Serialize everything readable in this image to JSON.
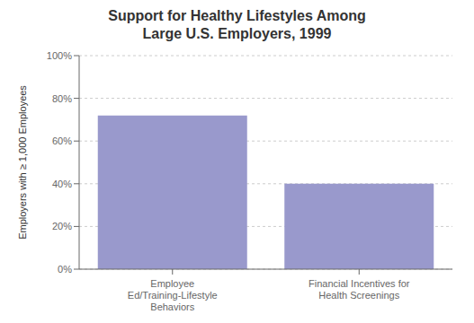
{
  "chart_data": {
    "type": "bar",
    "title": "Support for Healthy Lifestyles Among\nLarge U.S. Employers, 1999",
    "categories": [
      "Employee Ed/Training-Lifestyle Behaviors",
      "Financial Incentives for Health Screenings"
    ],
    "values": [
      0.72,
      0.4
    ],
    "color": "#9999cc",
    "ylabel": "Employers with ≥ 1,000 Employees",
    "ylim": [
      0,
      1.0
    ],
    "yticks": [
      {
        "value": 0.0,
        "label": "0%"
      },
      {
        "value": 0.2,
        "label": "20%"
      },
      {
        "value": 0.4,
        "label": "40%"
      },
      {
        "value": 0.6,
        "label": "60%"
      },
      {
        "value": 0.8,
        "label": "80%"
      },
      {
        "value": 1.0,
        "label": "100%"
      }
    ],
    "grid": true
  }
}
